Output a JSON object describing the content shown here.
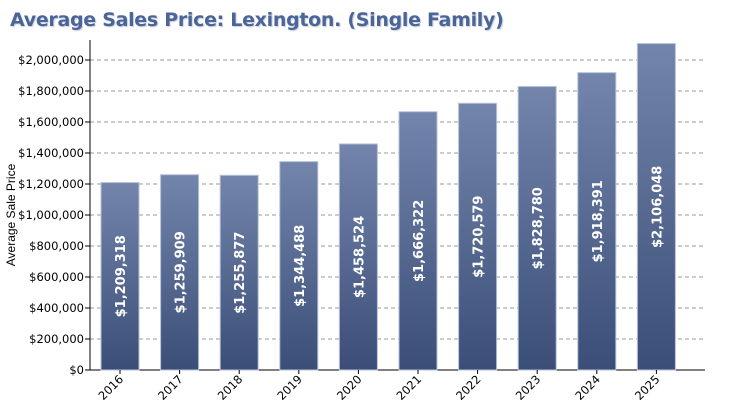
{
  "chart_data": {
    "type": "bar",
    "title": "Average Sales Price: Lexington. (Single Family)",
    "xlabel": "",
    "ylabel": "Average Sale Price",
    "categories": [
      "2016",
      "2017",
      "2018",
      "2019",
      "2020",
      "2021",
      "2022",
      "2023",
      "2024",
      "2025"
    ],
    "values": [
      1209318,
      1259909,
      1255877,
      1344488,
      1458524,
      1666322,
      1720579,
      1828780,
      1918391,
      2106048
    ],
    "data_labels": [
      "$1,209,318",
      "$1,259,909",
      "$1,255,877",
      "$1,344,488",
      "$1,458,524",
      "$1,666,322",
      "$1,720,579",
      "$1,828,780",
      "$1,918,391",
      "$2,106,048"
    ],
    "yticks": [
      0,
      200000,
      400000,
      600000,
      800000,
      1000000,
      1200000,
      1400000,
      1600000,
      1800000,
      2000000
    ],
    "ytick_labels": [
      "$0",
      "$200,000",
      "$400,000",
      "$600,000",
      "$800,000",
      "$1,000,000",
      "$1,200,000",
      "$1,400,000",
      "$1,600,000",
      "$1,800,000",
      "$2,000,000"
    ],
    "ylim": [
      0,
      2130000
    ],
    "grid": true,
    "colors": {
      "bar_top": "#7385ab",
      "bar_bottom": "#3b4e78",
      "title": "#4a6597"
    }
  }
}
